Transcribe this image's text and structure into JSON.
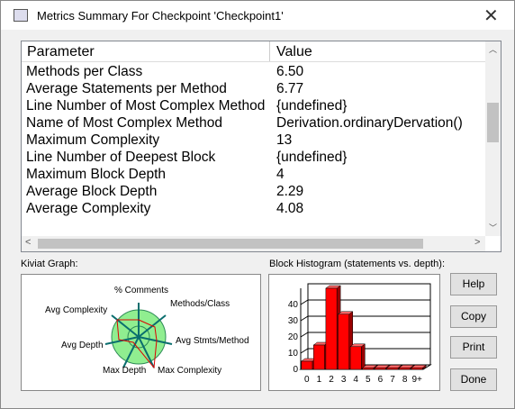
{
  "window": {
    "title": "Metrics Summary For Checkpoint 'Checkpoint1'"
  },
  "table": {
    "headers": [
      "Parameter",
      "Value"
    ],
    "rows": [
      [
        "Methods per Class",
        "6.50"
      ],
      [
        "Average Statements per Method",
        "6.77"
      ],
      [
        "Line Number of Most Complex Method",
        "{undefined}"
      ],
      [
        "Name of Most Complex Method",
        "Derivation.ordinaryDervation()"
      ],
      [
        "Maximum Complexity",
        "13"
      ],
      [
        "Line Number of Deepest Block",
        "{undefined}"
      ],
      [
        "Maximum Block Depth",
        "4"
      ],
      [
        "Average Block Depth",
        "2.29"
      ],
      [
        "Average Complexity",
        "4.08"
      ]
    ]
  },
  "kiviat": {
    "label": "Kiviat Graph:",
    "axes": [
      "% Comments",
      "Methods/Class",
      "Avg Stmts/Method",
      "Max Complexity",
      "Max Depth",
      "Avg Depth",
      "Avg Complexity"
    ]
  },
  "chart_data": {
    "type": "bar",
    "title": "Block Histogram (statements vs. depth):",
    "categories": [
      "0",
      "1",
      "2",
      "3",
      "4",
      "5",
      "6",
      "7",
      "8",
      "9+"
    ],
    "values": [
      5,
      15,
      50,
      34,
      14,
      1,
      1,
      1,
      1,
      1
    ],
    "color": "#ff0000",
    "ylim": [
      0,
      50
    ],
    "yticks": [
      0,
      10,
      20,
      30,
      40
    ]
  },
  "buttons": [
    "Help",
    "Copy",
    "Print",
    "Done"
  ]
}
